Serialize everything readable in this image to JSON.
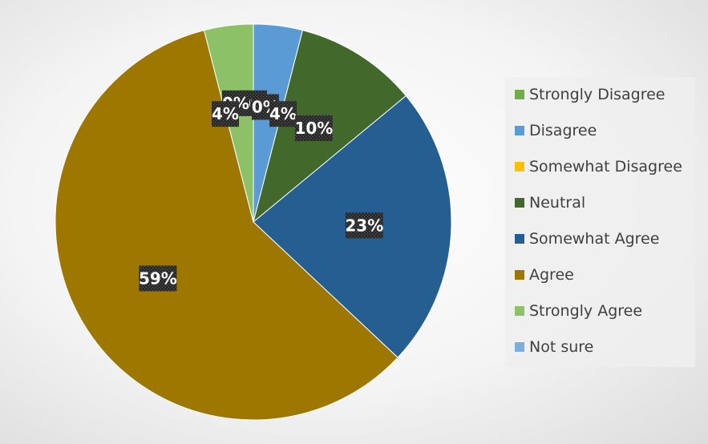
{
  "chart_data": {
    "type": "pie",
    "title": "",
    "legend_position": "right",
    "categories": [
      "Strongly Disagree",
      "Disagree",
      "Somewhat Disagree",
      "Neutral",
      "Somewhat Agree",
      "Agree",
      "Strongly Agree",
      "Not sure"
    ],
    "values": [
      0,
      4,
      0,
      10,
      23,
      59,
      4,
      0
    ],
    "data_labels": [
      "0%",
      "4%",
      "0%",
      "10%",
      "23%",
      "59%",
      "4%",
      "0%"
    ],
    "colors": [
      "#70AD47",
      "#5B9BD5",
      "#FFC000",
      "#43682B",
      "#255E91",
      "#9E7700",
      "#8CC168",
      "#7CAFDD"
    ]
  }
}
